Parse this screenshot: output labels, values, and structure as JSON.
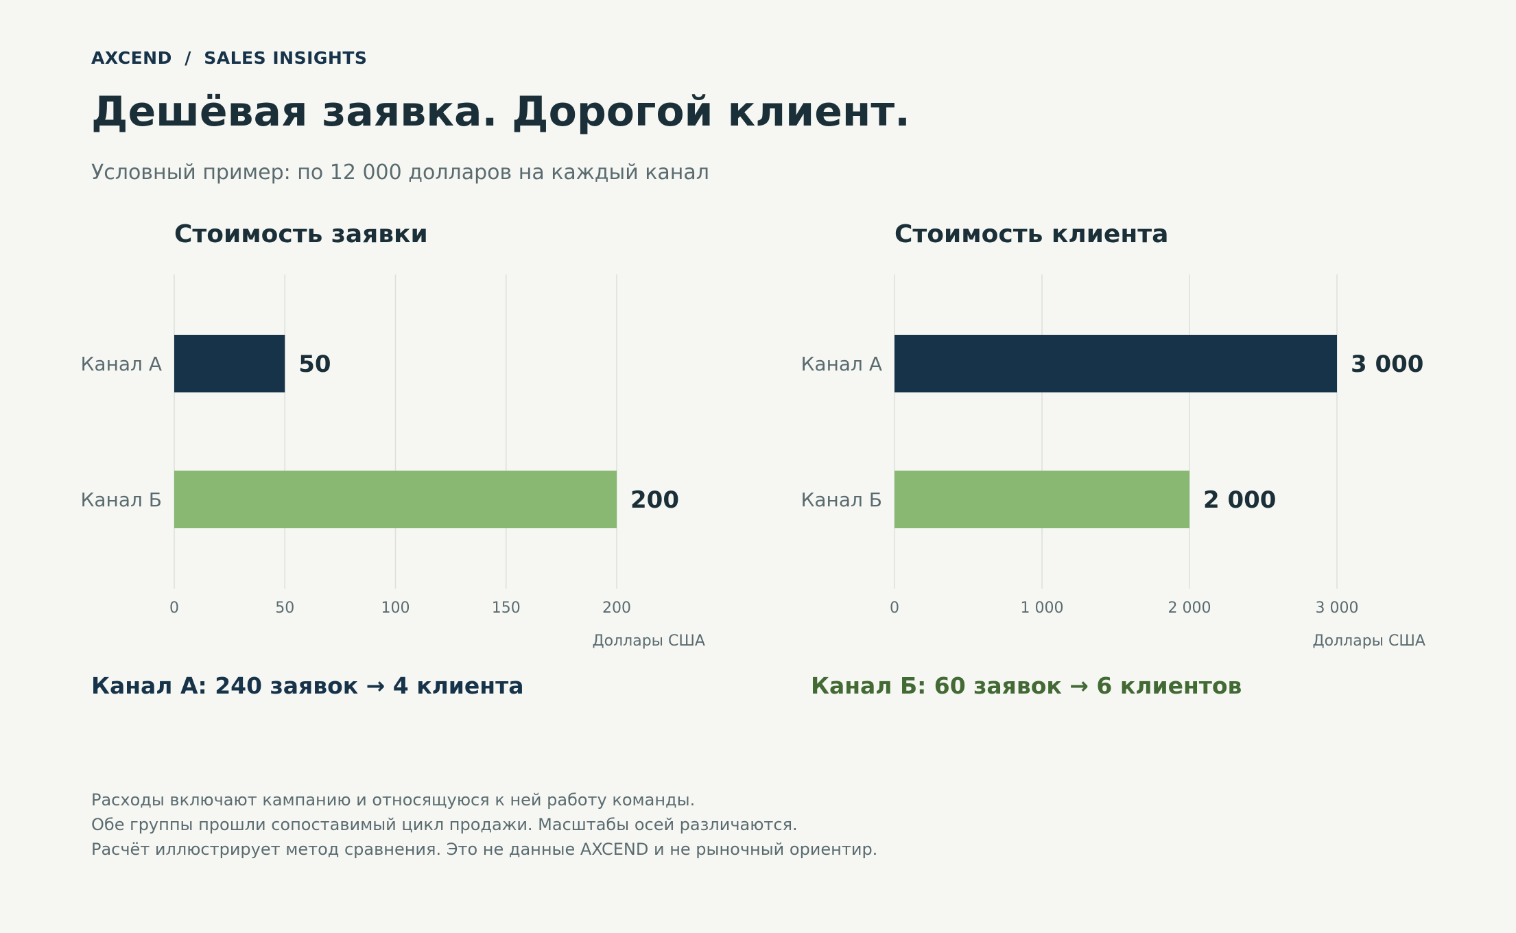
{
  "header": {
    "brand": "AXCEND  /  SALES INSIGHTS",
    "title": "Дешёвая заявка. Дорогой клиент.",
    "subtitle": "Условный пример: по 12 000 долларов на каждый канал"
  },
  "colors": {
    "channel_a": "#17334a",
    "channel_b": "#88b872",
    "grid": "#dcdfda",
    "text_dark": "#1b2f38",
    "text_muted": "#5a6b70",
    "conclusion_b": "#436a35"
  },
  "chart_data": [
    {
      "type": "bar",
      "orientation": "horizontal",
      "title": "Стоимость заявки",
      "categories": [
        "Канал А",
        "Канал Б"
      ],
      "values": [
        50,
        200
      ],
      "value_labels": [
        "50",
        "200"
      ],
      "colors": [
        "#17334a",
        "#88b872"
      ],
      "xlim": [
        0,
        240
      ],
      "ticks": [
        0,
        50,
        100,
        150,
        200
      ],
      "tick_labels": [
        "0",
        "50",
        "100",
        "150",
        "200"
      ],
      "xlabel": "Доллары США",
      "grid": "vertical"
    },
    {
      "type": "bar",
      "orientation": "horizontal",
      "title": "Стоимость клиента",
      "categories": [
        "Канал А",
        "Канал Б"
      ],
      "values": [
        3000,
        2000
      ],
      "value_labels": [
        "3 000",
        "2 000"
      ],
      "colors": [
        "#17334a",
        "#88b872"
      ],
      "xlim": [
        0,
        3600
      ],
      "ticks": [
        0,
        1000,
        2000,
        3000
      ],
      "tick_labels": [
        "0",
        "1 000",
        "2 000",
        "3 000"
      ],
      "xlabel": "Доллары США",
      "grid": "vertical"
    }
  ],
  "conclusions": {
    "channel_a": "Канал А: 240 заявок → 4 клиента",
    "channel_b": "Канал Б: 60 заявок → 6 клиентов"
  },
  "notes": [
    "Расходы включают кампанию и относящуюся к ней работу команды.",
    "Обе группы прошли сопоставимый цикл продажи. Масштабы осей различаются.",
    "Расчёт иллюстрирует метод сравнения. Это не данные AXCEND и не рыночный ориентир."
  ]
}
